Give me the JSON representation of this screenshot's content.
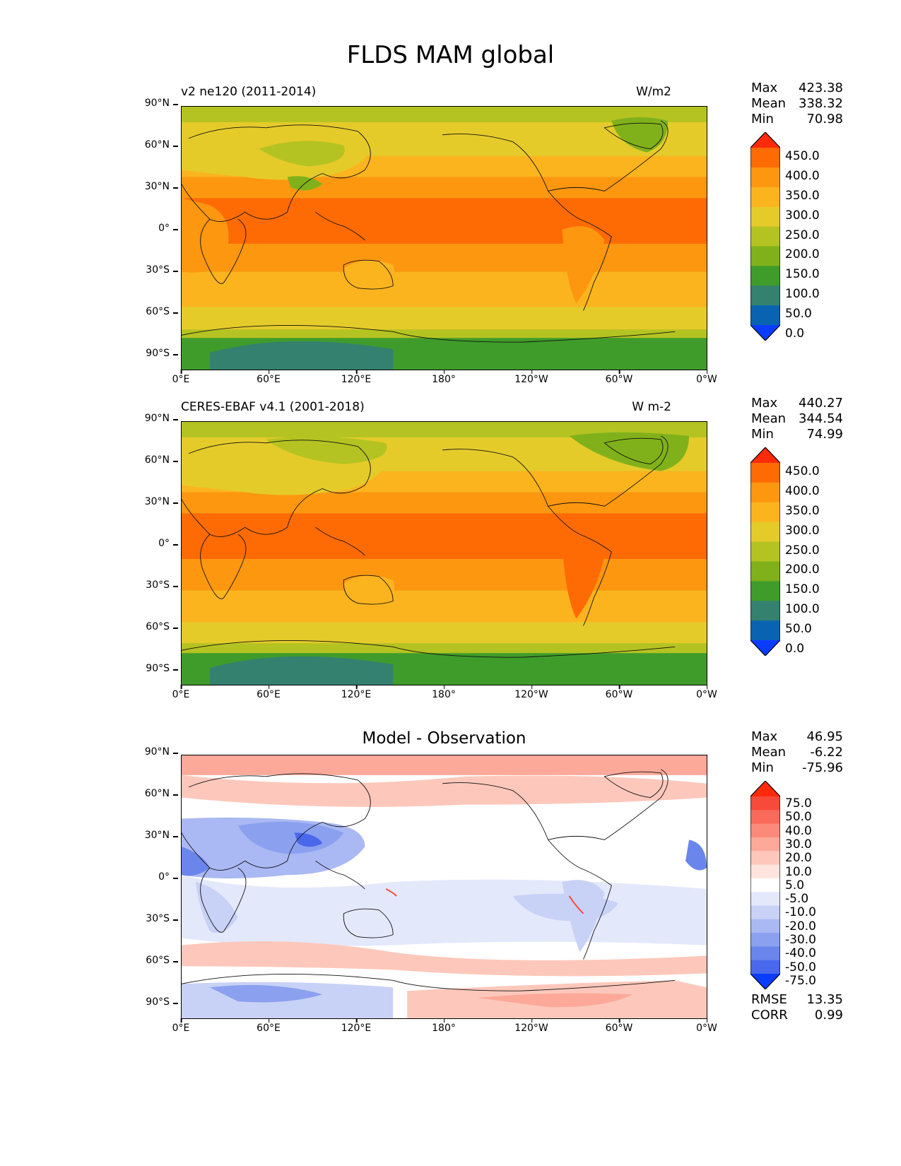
{
  "title": "FLDS MAM global",
  "x_ticks": [
    "0°E",
    "60°E",
    "120°E",
    "180°",
    "120°W",
    "60°W",
    "0°W"
  ],
  "y_ticks": [
    "90°N",
    "60°N",
    "30°N",
    "0°",
    "30°S",
    "60°S",
    "90°S"
  ],
  "panels": [
    {
      "subtitle_left": "v2 ne120 (2011-2014)",
      "subtitle_right": "W/m2",
      "subtitle_center": "",
      "stats": [
        {
          "label": "Max",
          "value": "423.38"
        },
        {
          "label": "Mean",
          "value": "338.32"
        },
        {
          "label": "Min",
          "value": "70.98"
        }
      ],
      "colorbar_labels": [
        "450.0",
        "400.0",
        "350.0",
        "300.0",
        "250.0",
        "200.0",
        "150.0",
        "100.0",
        "50.0",
        "0.0"
      ],
      "colorbar_colors": [
        "#ff2a0a",
        "#fe6b04",
        "#fd9710",
        "#fbb41e",
        "#e5cb2a",
        "#b4c321",
        "#80b11a",
        "#3f9c2a",
        "#34816f",
        "#0a63b0",
        "#0a3cff"
      ]
    },
    {
      "subtitle_left": "CERES-EBAF v4.1 (2001-2018)",
      "subtitle_right": "W m-2",
      "subtitle_center": "",
      "stats": [
        {
          "label": "Max",
          "value": "440.27"
        },
        {
          "label": "Mean",
          "value": "344.54"
        },
        {
          "label": "Min",
          "value": "74.99"
        }
      ],
      "colorbar_labels": [
        "450.0",
        "400.0",
        "350.0",
        "300.0",
        "250.0",
        "200.0",
        "150.0",
        "100.0",
        "50.0",
        "0.0"
      ],
      "colorbar_colors": [
        "#ff2a0a",
        "#fe6b04",
        "#fd9710",
        "#fbb41e",
        "#e5cb2a",
        "#b4c321",
        "#80b11a",
        "#3f9c2a",
        "#34816f",
        "#0a63b0",
        "#0a3cff"
      ]
    },
    {
      "subtitle_left": "",
      "subtitle_right": "",
      "subtitle_center": "Model - Observation",
      "stats": [
        {
          "label": "Max",
          "value": "46.95"
        },
        {
          "label": "Mean",
          "value": "-6.22"
        },
        {
          "label": "Min",
          "value": "-75.96"
        }
      ],
      "colorbar_labels": [
        "75.0",
        "50.0",
        "40.0",
        "30.0",
        "20.0",
        "10.0",
        "5.0",
        "-5.0",
        "-10.0",
        "-20.0",
        "-30.0",
        "-40.0",
        "-50.0",
        "-75.0"
      ],
      "colorbar_colors": [
        "#ff2a0a",
        "#f74a3a",
        "#f96a5a",
        "#fb8a7a",
        "#fca99a",
        "#fdc8bb",
        "#fee4dc",
        "#ffffff",
        "#e4e8fb",
        "#c8d1f6",
        "#aab8f3",
        "#8ba0ef",
        "#6a86ec",
        "#4a68eb",
        "#0a3cff"
      ],
      "bottom_stats": [
        {
          "label": "RMSE",
          "value": "13.35"
        },
        {
          "label": "CORR",
          "value": "0.99"
        }
      ]
    }
  ]
}
